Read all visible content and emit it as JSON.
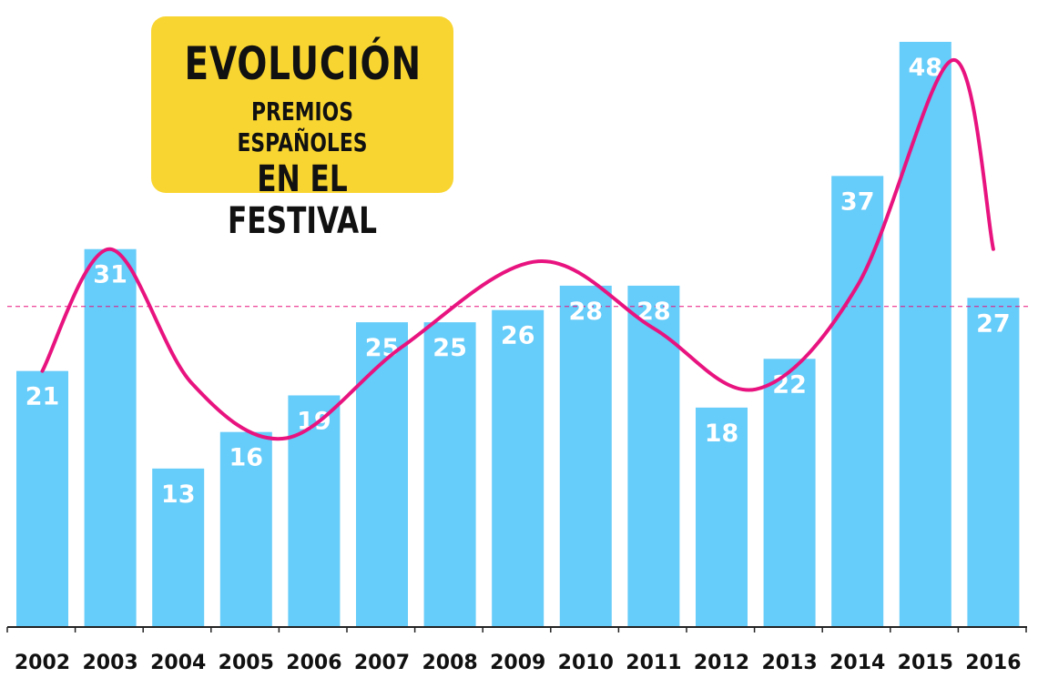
{
  "title": {
    "line1": "EVOLUCIÓN",
    "line2": "PREMIOS ESPAÑOLES",
    "line3": "EN EL FESTIVAL"
  },
  "colors": {
    "bar": "#66ccf9",
    "trend": "#e8137f",
    "reference": "#e8137f",
    "title_bg": "#f9d531",
    "axis": "#222222"
  },
  "chart_data": {
    "type": "bar",
    "categories": [
      "2002",
      "2003",
      "2004",
      "2005",
      "2006",
      "2007",
      "2008",
      "2009",
      "2010",
      "2011",
      "2012",
      "2013",
      "2014",
      "2015",
      "2016"
    ],
    "values": [
      21,
      31,
      13,
      16,
      19,
      25,
      25,
      26,
      28,
      28,
      18,
      22,
      37,
      48,
      27
    ],
    "ylim": [
      0,
      51
    ],
    "reference_line": 26.3,
    "trend_line": "smoothed curve",
    "grid": false
  }
}
